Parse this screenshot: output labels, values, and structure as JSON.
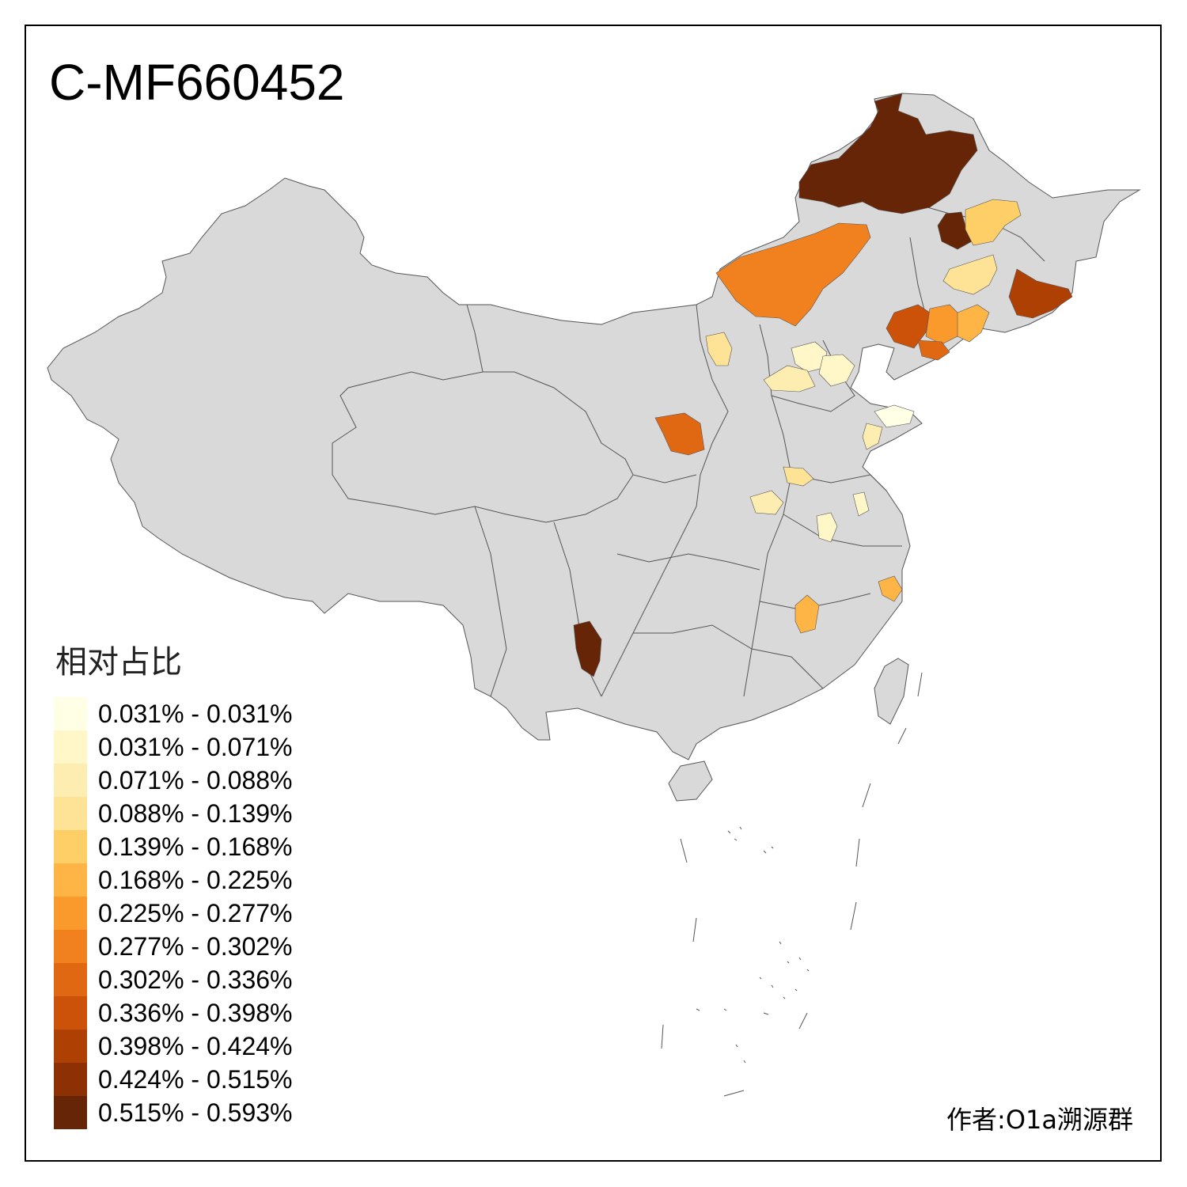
{
  "title": "C-MF660452",
  "legend": {
    "title": "相对占比",
    "items": [
      {
        "label": "0.031% - 0.031%",
        "color": "#FFFFE5"
      },
      {
        "label": "0.031% - 0.071%",
        "color": "#FFF7C8"
      },
      {
        "label": "0.071% - 0.088%",
        "color": "#FEEDB0"
      },
      {
        "label": "0.088% - 0.139%",
        "color": "#FEE296"
      },
      {
        "label": "0.139% - 0.168%",
        "color": "#FECF66"
      },
      {
        "label": "0.168% - 0.225%",
        "color": "#FEB546"
      },
      {
        "label": "0.225% - 0.277%",
        "color": "#FB9A2C"
      },
      {
        "label": "0.277% - 0.302%",
        "color": "#F1801E"
      },
      {
        "label": "0.302% - 0.336%",
        "color": "#E16813"
      },
      {
        "label": "0.336% - 0.398%",
        "color": "#CC520A"
      },
      {
        "label": "0.398% - 0.424%",
        "color": "#AE4004"
      },
      {
        "label": "0.424% - 0.515%",
        "color": "#8D3104"
      },
      {
        "label": "0.515% - 0.593%",
        "color": "#662506"
      }
    ]
  },
  "credit": "作者:O1a溯源群",
  "colors": {
    "base_region": "#D9D9D9",
    "border": "#555555"
  }
}
